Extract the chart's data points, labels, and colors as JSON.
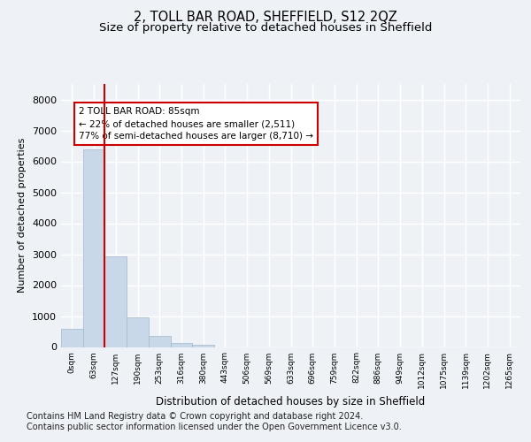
{
  "title": "2, TOLL BAR ROAD, SHEFFIELD, S12 2QZ",
  "subtitle": "Size of property relative to detached houses in Sheffield",
  "xlabel": "Distribution of detached houses by size in Sheffield",
  "ylabel": "Number of detached properties",
  "bar_color": "#c8d8e8",
  "bar_edge_color": "#a0b8cc",
  "vline_color": "#cc0000",
  "vline_x": 1.5,
  "categories": [
    "0sqm",
    "63sqm",
    "127sqm",
    "190sqm",
    "253sqm",
    "316sqm",
    "380sqm",
    "443sqm",
    "506sqm",
    "569sqm",
    "633sqm",
    "696sqm",
    "759sqm",
    "822sqm",
    "886sqm",
    "949sqm",
    "1012sqm",
    "1075sqm",
    "1139sqm",
    "1202sqm",
    "1265sqm"
  ],
  "values": [
    600,
    6380,
    2920,
    970,
    360,
    140,
    80,
    0,
    0,
    0,
    0,
    0,
    0,
    0,
    0,
    0,
    0,
    0,
    0,
    0,
    0
  ],
  "ylim": [
    0,
    8500
  ],
  "yticks": [
    0,
    1000,
    2000,
    3000,
    4000,
    5000,
    6000,
    7000,
    8000
  ],
  "annotation_text": "2 TOLL BAR ROAD: 85sqm\n← 22% of detached houses are smaller (2,511)\n77% of semi-detached houses are larger (8,710) →",
  "annotation_box_color": "#ffffff",
  "annotation_box_edge": "#cc0000",
  "footer_line1": "Contains HM Land Registry data © Crown copyright and database right 2024.",
  "footer_line2": "Contains public sector information licensed under the Open Government Licence v3.0.",
  "background_color": "#eef2f7",
  "plot_bg_color": "#eef2f7",
  "grid_color": "#ffffff",
  "title_fontsize": 10.5,
  "subtitle_fontsize": 9.5,
  "footer_fontsize": 7.0,
  "annot_fontsize": 7.5,
  "ylabel_fontsize": 8,
  "xlabel_fontsize": 8.5,
  "ytick_fontsize": 8,
  "xtick_fontsize": 6.5
}
